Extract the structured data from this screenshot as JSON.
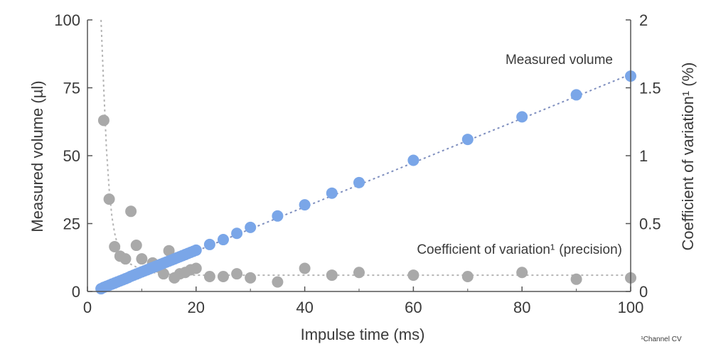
{
  "chart_data": {
    "type": "scatter",
    "xlabel": "Impulse time (ms)",
    "ylabel_left": "Measured volume (µl)",
    "ylabel_right": "Coefficient of variation¹ (%)",
    "xlim": [
      0,
      100
    ],
    "ylim_left": [
      0,
      100
    ],
    "ylim_right": [
      0,
      2
    ],
    "x_ticks": [
      "0",
      "20",
      "40",
      "60",
      "80",
      "100"
    ],
    "y_left_ticks": [
      "0",
      "25",
      "50",
      "75",
      "100"
    ],
    "y_right_ticks": [
      "0",
      "0.5",
      "1",
      "1.5",
      "2"
    ],
    "grid": false,
    "annotations": {
      "measured_volume": "Measured volume",
      "cv_main": "Coefficient of variation¹",
      "cv_suffix": "(precision)",
      "footnote": "¹Channel CV"
    },
    "colors": {
      "volume": "#7aa6e8",
      "cv": "#a9a9a9",
      "axis": "#555555"
    },
    "series": [
      {
        "name": "Measured volume",
        "axis": "left",
        "x": [
          2.5,
          3,
          3.5,
          4,
          4.5,
          5,
          5.5,
          6,
          6.5,
          7,
          7.5,
          8,
          8.5,
          9,
          9.5,
          10,
          10.5,
          11,
          11.5,
          12,
          12.5,
          13,
          13.5,
          14,
          14.5,
          15,
          15.5,
          16,
          16.5,
          17,
          17.5,
          18,
          18.5,
          19,
          19.5,
          20,
          22.5,
          25,
          27.5,
          30,
          35,
          40,
          45,
          50,
          60,
          70,
          80,
          90,
          100
        ],
        "y": [
          1.0,
          1.5,
          1.9,
          2.3,
          2.7,
          3.1,
          3.5,
          3.9,
          4.3,
          4.7,
          5.1,
          5.6,
          6.0,
          6.4,
          6.8,
          7.2,
          7.6,
          8.0,
          8.4,
          8.8,
          9.2,
          9.6,
          10.0,
          10.4,
          10.8,
          11.2,
          11.6,
          12.0,
          12.4,
          12.8,
          13.2,
          13.6,
          14.0,
          14.4,
          14.8,
          15.2,
          17.3,
          19.1,
          21.4,
          23.6,
          27.8,
          31.9,
          36.2,
          40.1,
          48.3,
          56.0,
          64.3,
          72.4,
          79.3
        ],
        "trendline": {
          "x": [
            2.5,
            100
          ],
          "y": [
            0.6,
            80
          ]
        }
      },
      {
        "name": "Coefficient of variation",
        "axis": "right",
        "x": [
          3,
          4,
          5,
          6,
          7,
          8,
          9,
          10,
          11,
          12,
          13,
          14,
          15,
          16,
          17,
          18,
          19,
          20,
          22.5,
          25,
          27.5,
          30,
          35,
          40,
          45,
          50,
          60,
          70,
          80,
          90,
          100
        ],
        "y": [
          1.26,
          0.68,
          0.33,
          0.26,
          0.24,
          0.59,
          0.34,
          0.24,
          0.16,
          0.21,
          0.18,
          0.13,
          0.3,
          0.1,
          0.13,
          0.14,
          0.16,
          0.17,
          0.11,
          0.11,
          0.13,
          0.1,
          0.07,
          0.17,
          0.12,
          0.14,
          0.12,
          0.11,
          0.14,
          0.09,
          0.1
        ],
        "trendline": {
          "x": [
            2.5,
            3,
            3.5,
            4,
            4.5,
            5,
            5.5,
            6,
            7,
            8,
            9,
            10,
            12,
            14,
            16,
            18,
            20,
            25,
            30,
            40,
            50,
            60,
            70,
            80,
            90,
            100
          ],
          "y": [
            2.0,
            1.5,
            1.05,
            0.75,
            0.55,
            0.43,
            0.35,
            0.3,
            0.24,
            0.2,
            0.18,
            0.16,
            0.14,
            0.13,
            0.125,
            0.12,
            0.12,
            0.12,
            0.12,
            0.12,
            0.12,
            0.12,
            0.12,
            0.12,
            0.12,
            0.12
          ]
        }
      }
    ]
  }
}
